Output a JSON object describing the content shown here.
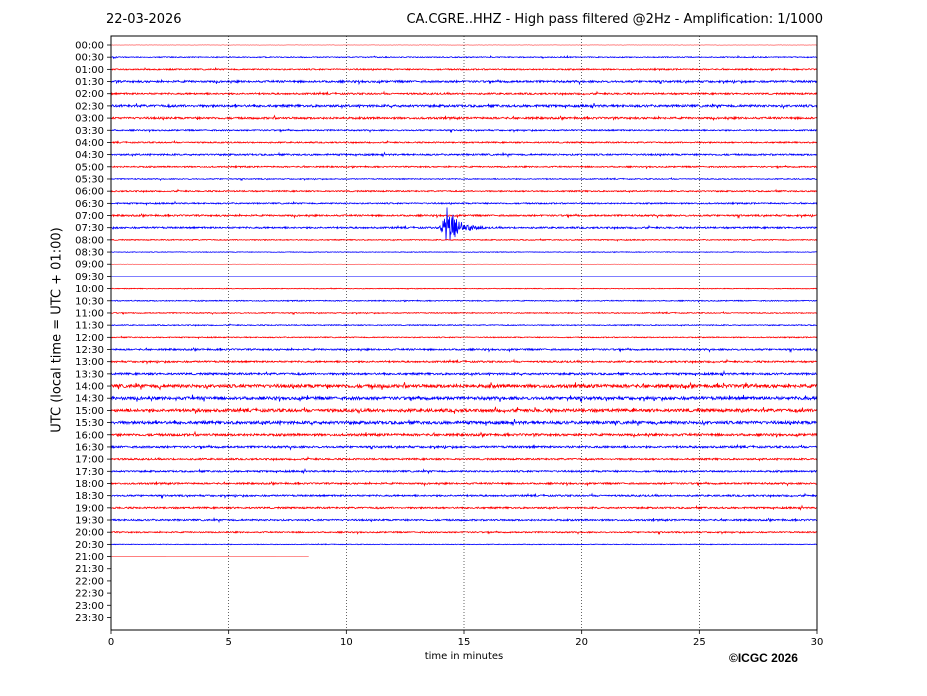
{
  "header": {
    "date": "22-03-2026",
    "title": "CA.CGRE..HHZ - High pass filtered @2Hz - Amplification: 1/1000"
  },
  "footer": {
    "copyright": "©ICGC 2026"
  },
  "chart_data": {
    "type": "line",
    "title": "CA.CGRE..HHZ - High pass filtered @2Hz - Amplification: 1/1000",
    "xlabel": "time in minutes",
    "ylabel": "UTC (local time = UTC + 01:00)",
    "xlim": [
      0,
      30
    ],
    "x_ticks": [
      0,
      5,
      10,
      15,
      20,
      25,
      30
    ],
    "row_labels": [
      "00:00",
      "00:30",
      "01:00",
      "01:30",
      "02:00",
      "02:30",
      "03:00",
      "03:30",
      "04:00",
      "04:30",
      "05:00",
      "05:30",
      "06:00",
      "06:30",
      "07:00",
      "07:30",
      "08:00",
      "08:30",
      "09:00",
      "09:30",
      "10:00",
      "10:30",
      "11:00",
      "11:30",
      "12:00",
      "12:30",
      "13:00",
      "13:30",
      "14:00",
      "14:30",
      "15:00",
      "15:30",
      "16:00",
      "16:30",
      "17:00",
      "17:30",
      "18:00",
      "18:30",
      "19:00",
      "19:30",
      "20:00",
      "20:30",
      "21:00",
      "21:30",
      "22:00",
      "22:30",
      "23:00",
      "23:30"
    ],
    "colors": {
      "even_rows": "#ff0000",
      "odd_rows": "#0000ff",
      "grid": "#000000"
    },
    "grid": "vertical dotted",
    "row_noise_level": [
      0.1,
      0.3,
      0.4,
      0.6,
      0.5,
      0.7,
      0.6,
      0.4,
      0.4,
      0.5,
      0.4,
      0.3,
      0.4,
      0.4,
      0.5,
      0.5,
      0.3,
      0.2,
      0.1,
      0.1,
      0.2,
      0.3,
      0.3,
      0.3,
      0.3,
      0.5,
      0.5,
      0.6,
      1.0,
      0.9,
      0.9,
      0.9,
      0.7,
      0.6,
      0.5,
      0.5,
      0.5,
      0.5,
      0.5,
      0.5,
      0.4,
      0.2,
      0.05,
      0,
      0,
      0,
      0,
      0
    ],
    "row_end_minute": [
      30,
      30,
      30,
      30,
      30,
      30,
      30,
      30,
      30,
      30,
      30,
      30,
      30,
      30,
      30,
      30,
      30,
      30,
      30,
      30,
      30,
      30,
      30,
      30,
      30,
      30,
      30,
      30,
      30,
      30,
      30,
      30,
      30,
      30,
      30,
      30,
      30,
      30,
      30,
      30,
      30,
      30,
      8.4,
      0,
      0,
      0,
      0,
      0
    ],
    "events": [
      {
        "row": "07:30",
        "minute": 14.3,
        "amplitude": 1.0,
        "label": ""
      }
    ]
  }
}
